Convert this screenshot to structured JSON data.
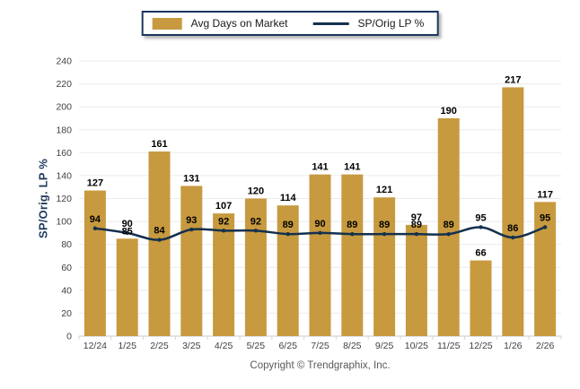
{
  "legend": {
    "bar_label": "Avg Days on Market",
    "line_label": "SP/Orig LP %"
  },
  "y_axis": {
    "title": "SP/Orig. LP %",
    "tick_labels": [
      "0",
      "20",
      "40",
      "60",
      "80",
      "100",
      "120",
      "140",
      "160",
      "180",
      "200",
      "220",
      "240"
    ]
  },
  "footer": {
    "copyright": "Copyright © Trendgraphix, Inc."
  },
  "colors": {
    "bar": "#C79A3F",
    "line": "#14304E",
    "marker": "#14304E",
    "grid": "#EBEBEB",
    "axis": "#C9C9C9",
    "tick": "#D4D4D4",
    "value_label": "#000000",
    "tick_text": "#3F3F3F",
    "legend_border": "#1B365D",
    "y_title_text": "#1F3A5C",
    "copyright_text": "#595959"
  },
  "chart_data": {
    "type": "bar",
    "categories": [
      "12/24",
      "1/25",
      "2/25",
      "3/25",
      "4/25",
      "5/25",
      "6/25",
      "7/25",
      "8/25",
      "9/25",
      "10/25",
      "11/25",
      "12/25",
      "1/26",
      "2/26"
    ],
    "series": [
      {
        "name": "Avg Days on Market",
        "type": "bar",
        "values": [
          127,
          85,
          161,
          131,
          107,
          120,
          114,
          141,
          141,
          121,
          97,
          190,
          66,
          217,
          117
        ]
      },
      {
        "name": "SP/Orig LP %",
        "type": "line",
        "values": [
          94,
          90,
          84,
          93,
          92,
          92,
          89,
          90,
          89,
          89,
          89,
          89,
          95,
          86,
          95
        ]
      }
    ],
    "title": "",
    "xlabel": "",
    "ylabel": "SP/Orig. LP %",
    "ylim": [
      0,
      240
    ],
    "ystep": 20,
    "grid": true,
    "legend_position": "top-center",
    "value_labels_shown": true,
    "line_smoothed": true
  }
}
